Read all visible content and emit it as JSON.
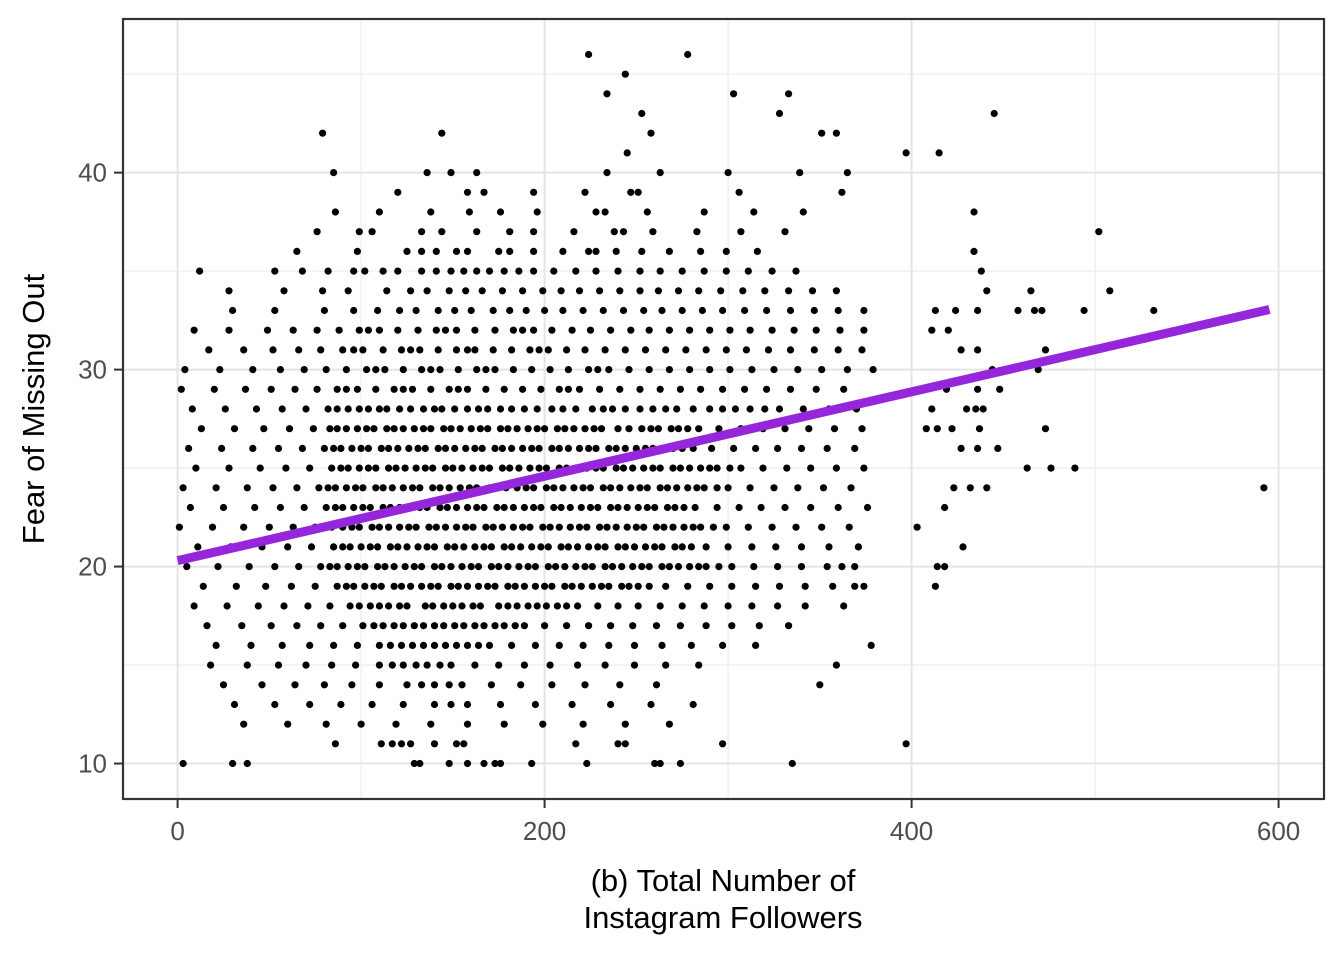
{
  "chart_data": {
    "type": "scatter",
    "title": "",
    "xlabel": "(b) Total Number of Instagram Followers",
    "xlabel_lines": [
      "(b) Total Number of",
      "Instagram Followers"
    ],
    "ylabel": "Fear of Missing Out",
    "xlim": [
      -29.75,
      624.75
    ],
    "ylim": [
      8.2,
      47.8
    ],
    "x_ticks": {
      "major": [
        0,
        200,
        400,
        600
      ],
      "minor": [
        100,
        300,
        500
      ]
    },
    "y_ticks": {
      "major": [
        10,
        20,
        30,
        40
      ],
      "minor": [
        15,
        25,
        35,
        45
      ]
    },
    "grid": "on",
    "legend": "none",
    "colors": {
      "point": "#000000",
      "trend": "#9626dc",
      "grid_major": "#e4e4e4",
      "grid_minor": "#f1f1f1",
      "panel_border": "#333333",
      "tick_mark": "#333333",
      "tick_label": "#4d4d4d",
      "axis_title": "#000000",
      "background": "#ffffff"
    },
    "style": {
      "point_radius": 3.6,
      "trend_width": 9,
      "tick_length": 9
    },
    "trend_line": {
      "fit": "linear",
      "x": [
        0,
        595
      ],
      "y": [
        20.3,
        33.05
      ]
    },
    "points_y_bands": [
      {
        "y": 46,
        "x": [
          224,
          278
        ]
      },
      {
        "y": 45,
        "x": [
          244
        ]
      },
      {
        "y": 44,
        "x": [
          234,
          303,
          333
        ]
      },
      {
        "y": 43,
        "x": [
          253,
          328,
          445
        ]
      },
      {
        "y": 42,
        "x": [
          79,
          144,
          258,
          351,
          359
        ]
      },
      {
        "y": 41,
        "x": [
          245,
          397,
          415
        ]
      },
      {
        "y": 40,
        "x": [
          85,
          136,
          149,
          163,
          234,
          263,
          300,
          339,
          365
        ]
      },
      {
        "y": 39,
        "x": [
          120,
          158,
          167,
          194,
          222,
          247,
          251,
          306,
          362
        ]
      },
      {
        "y": 38,
        "x": [
          86,
          110,
          138,
          159,
          176,
          196,
          228,
          233,
          256,
          287,
          314,
          341,
          434
        ]
      },
      {
        "y": 37,
        "x": [
          76,
          99,
          106,
          133,
          144,
          163,
          181,
          194,
          216,
          238,
          243,
          259,
          283,
          307,
          331,
          502
        ]
      },
      {
        "y": 36,
        "x": [
          65,
          98,
          125,
          133,
          141,
          152,
          158,
          175,
          181,
          194,
          210,
          224,
          228,
          239,
          253,
          268,
          285,
          299,
          316,
          434
        ]
      },
      {
        "y": 35,
        "x": [
          12,
          53,
          68,
          82,
          96,
          102,
          112,
          120,
          133,
          141,
          149,
          156,
          163,
          170,
          178,
          186,
          194,
          205,
          217,
          228,
          240,
          252,
          263,
          275,
          287,
          299,
          311,
          324,
          337,
          438
        ]
      },
      {
        "y": 34,
        "x": [
          28,
          58,
          79,
          93,
          114,
          127,
          136,
          148,
          157,
          166,
          177,
          188,
          199,
          209,
          219,
          230,
          241,
          252,
          262,
          273,
          284,
          296,
          308,
          320,
          333,
          346,
          359,
          441,
          465,
          508
        ]
      },
      {
        "y": 33,
        "x": [
          30,
          53,
          80,
          96,
          109,
          121,
          130,
          142,
          151,
          160,
          172,
          181,
          190,
          200,
          210,
          221,
          232,
          243,
          254,
          264,
          275,
          286,
          297,
          309,
          321,
          334,
          347,
          360,
          374,
          413,
          424,
          436,
          458,
          467,
          471,
          494,
          532
        ]
      },
      {
        "y": 32,
        "x": [
          9,
          28,
          49,
          63,
          76,
          88,
          99,
          104,
          110,
          120,
          131,
          141,
          146,
          152,
          162,
          173,
          183,
          188,
          194,
          204,
          215,
          225,
          236,
          247,
          257,
          268,
          279,
          290,
          301,
          312,
          324,
          336,
          348,
          361,
          374,
          411,
          420
        ]
      },
      {
        "y": 31,
        "x": [
          17,
          36,
          52,
          66,
          78,
          90,
          96,
          101,
          112,
          122,
          127,
          132,
          142,
          152,
          158,
          162,
          172,
          182,
          192,
          197,
          202,
          212,
          222,
          233,
          244,
          255,
          266,
          277,
          288,
          299,
          310,
          322,
          334,
          347,
          360,
          373,
          427,
          436,
          473
        ]
      },
      {
        "y": 30,
        "x": [
          4,
          23,
          41,
          56,
          69,
          81,
          92,
          103,
          108,
          113,
          123,
          133,
          138,
          143,
          153,
          163,
          168,
          173,
          183,
          193,
          203,
          213,
          224,
          229,
          235,
          246,
          257,
          268,
          279,
          290,
          301,
          313,
          325,
          338,
          351,
          365,
          379,
          444,
          469
        ]
      },
      {
        "y": 29,
        "x": [
          2,
          20,
          37,
          51,
          64,
          76,
          87,
          92,
          98,
          108,
          118,
          123,
          128,
          138,
          148,
          153,
          158,
          168,
          178,
          188,
          198,
          208,
          213,
          219,
          230,
          241,
          252,
          263,
          274,
          285,
          297,
          309,
          321,
          334,
          348,
          363,
          419,
          436,
          448
        ]
      },
      {
        "y": 28,
        "x": [
          8,
          26,
          43,
          57,
          70,
          82,
          87,
          93,
          99,
          104,
          110,
          114,
          121,
          127,
          134,
          140,
          144,
          151,
          158,
          164,
          169,
          176,
          182,
          189,
          196,
          204,
          210,
          217,
          226,
          232,
          237,
          244,
          252,
          259,
          266,
          272,
          281,
          290,
          297,
          304,
          312,
          320,
          328,
          341,
          355,
          370,
          411,
          430,
          435,
          439
        ]
      },
      {
        "y": 27,
        "x": [
          13,
          31,
          47,
          61,
          74,
          83,
          87,
          92,
          98,
          103,
          107,
          114,
          118,
          123,
          129,
          134,
          138,
          145,
          149,
          154,
          160,
          165,
          169,
          176,
          180,
          185,
          191,
          196,
          200,
          207,
          211,
          216,
          222,
          227,
          231,
          240,
          246,
          253,
          258,
          262,
          269,
          273,
          278,
          284,
          295,
          307,
          319,
          331,
          344,
          358,
          373,
          408,
          414,
          422,
          437,
          473
        ]
      },
      {
        "y": 26,
        "x": [
          6,
          24,
          41,
          55,
          68,
          80,
          85,
          89,
          95,
          100,
          104,
          111,
          115,
          120,
          126,
          131,
          135,
          142,
          146,
          151,
          157,
          162,
          166,
          173,
          177,
          182,
          188,
          193,
          197,
          204,
          208,
          213,
          219,
          224,
          228,
          235,
          239,
          244,
          250,
          255,
          259,
          266,
          270,
          275,
          281,
          291,
          303,
          315,
          327,
          340,
          354,
          369,
          427,
          436,
          447
        ]
      },
      {
        "y": 25,
        "x": [
          10,
          28,
          45,
          59,
          72,
          84,
          89,
          93,
          99,
          104,
          108,
          115,
          119,
          124,
          130,
          135,
          139,
          146,
          150,
          155,
          161,
          166,
          170,
          177,
          181,
          186,
          192,
          197,
          201,
          208,
          212,
          217,
          223,
          228,
          232,
          239,
          243,
          248,
          254,
          259,
          263,
          270,
          274,
          279,
          285,
          290,
          294,
          301,
          307,
          319,
          332,
          345,
          359,
          374,
          463,
          476,
          489
        ]
      },
      {
        "y": 24,
        "x": [
          3,
          21,
          38,
          52,
          65,
          77,
          82,
          86,
          92,
          97,
          101,
          108,
          112,
          117,
          123,
          128,
          132,
          139,
          143,
          148,
          154,
          159,
          163,
          170,
          174,
          179,
          185,
          190,
          194,
          201,
          205,
          210,
          216,
          221,
          225,
          232,
          236,
          241,
          247,
          252,
          256,
          263,
          267,
          272,
          278,
          283,
          287,
          294,
          300,
          312,
          325,
          338,
          352,
          367,
          423,
          432,
          441,
          592
        ]
      },
      {
        "y": 23,
        "x": [
          7,
          25,
          42,
          56,
          69,
          81,
          86,
          90,
          96,
          101,
          105,
          112,
          116,
          121,
          127,
          132,
          136,
          143,
          147,
          152,
          158,
          163,
          167,
          174,
          178,
          183,
          189,
          194,
          198,
          205,
          209,
          214,
          220,
          225,
          229,
          236,
          240,
          245,
          251,
          256,
          260,
          267,
          271,
          276,
          282,
          294,
          306,
          318,
          331,
          345,
          360,
          376,
          418
        ]
      },
      {
        "y": 22,
        "x": [
          1,
          19,
          36,
          50,
          63,
          75,
          80,
          84,
          90,
          95,
          99,
          106,
          110,
          115,
          121,
          126,
          130,
          137,
          141,
          146,
          152,
          157,
          161,
          168,
          172,
          177,
          183,
          188,
          192,
          199,
          203,
          208,
          214,
          219,
          223,
          230,
          234,
          239,
          245,
          250,
          254,
          261,
          265,
          270,
          276,
          281,
          285,
          292,
          299,
          311,
          324,
          337,
          351,
          366,
          403
        ]
      },
      {
        "y": 21,
        "x": [
          11,
          29,
          46,
          60,
          73,
          85,
          90,
          94,
          100,
          105,
          109,
          116,
          120,
          125,
          131,
          136,
          140,
          147,
          151,
          156,
          162,
          167,
          171,
          178,
          182,
          187,
          193,
          198,
          202,
          209,
          213,
          218,
          224,
          229,
          233,
          240,
          244,
          249,
          255,
          260,
          264,
          271,
          275,
          280,
          288,
          300,
          313,
          326,
          340,
          355,
          371,
          428
        ]
      },
      {
        "y": 20,
        "x": [
          5,
          22,
          39,
          53,
          66,
          78,
          83,
          87,
          93,
          98,
          102,
          109,
          113,
          118,
          124,
          129,
          133,
          140,
          144,
          149,
          155,
          160,
          164,
          171,
          175,
          180,
          186,
          191,
          195,
          202,
          206,
          211,
          217,
          222,
          226,
          233,
          237,
          242,
          248,
          253,
          257,
          264,
          268,
          273,
          279,
          284,
          288,
          295,
          302,
          314,
          327,
          340,
          354,
          362,
          369,
          414,
          418
        ]
      },
      {
        "y": 19,
        "x": [
          14,
          32,
          48,
          62,
          75,
          87,
          92,
          96,
          102,
          107,
          111,
          118,
          122,
          127,
          133,
          138,
          142,
          149,
          153,
          158,
          164,
          169,
          173,
          180,
          184,
          189,
          195,
          200,
          204,
          211,
          215,
          220,
          226,
          231,
          235,
          242,
          246,
          251,
          257,
          266,
          278,
          290,
          302,
          315,
          328,
          342,
          357,
          369,
          374,
          413
        ]
      },
      {
        "y": 18,
        "x": [
          9,
          27,
          44,
          58,
          71,
          83,
          94,
          99,
          105,
          110,
          115,
          121,
          125,
          135,
          139,
          145,
          150,
          155,
          161,
          165,
          175,
          180,
          185,
          191,
          196,
          201,
          207,
          212,
          218,
          229,
          240,
          251,
          263,
          275,
          287,
          300,
          313,
          327,
          342,
          363
        ]
      },
      {
        "y": 17,
        "x": [
          16,
          35,
          51,
          65,
          78,
          90,
          101,
          107,
          112,
          118,
          123,
          129,
          134,
          140,
          145,
          151,
          156,
          162,
          167,
          173,
          178,
          184,
          189,
          200,
          212,
          224,
          236,
          248,
          261,
          274,
          288,
          302,
          317,
          333
        ]
      },
      {
        "y": 16,
        "x": [
          21,
          40,
          57,
          72,
          85,
          98,
          110,
          116,
          122,
          128,
          134,
          140,
          146,
          152,
          158,
          164,
          170,
          182,
          195,
          208,
          221,
          235,
          249,
          264,
          280,
          297,
          315,
          378
        ]
      },
      {
        "y": 15,
        "x": [
          18,
          38,
          55,
          70,
          84,
          97,
          110,
          117,
          123,
          130,
          136,
          143,
          149,
          162,
          175,
          189,
          203,
          218,
          233,
          249,
          266,
          284,
          359
        ]
      },
      {
        "y": 14,
        "x": [
          25,
          46,
          64,
          80,
          95,
          110,
          125,
          133,
          140,
          148,
          155,
          171,
          187,
          204,
          222,
          241,
          261,
          350
        ]
      },
      {
        "y": 13,
        "x": [
          31,
          53,
          72,
          89,
          106,
          123,
          140,
          149,
          158,
          176,
          195,
          215,
          236,
          258,
          281
        ]
      },
      {
        "y": 12,
        "x": [
          36,
          60,
          81,
          100,
          119,
          138,
          158,
          178,
          199,
          221,
          244,
          268
        ]
      },
      {
        "y": 11,
        "x": [
          86,
          111,
          117,
          122,
          127,
          140,
          152,
          156,
          217,
          240,
          244,
          297,
          397
        ]
      },
      {
        "y": 10,
        "x": [
          3,
          30,
          38,
          129,
          132,
          148,
          158,
          167,
          173,
          176,
          193,
          223,
          260,
          263,
          274,
          335
        ]
      }
    ]
  }
}
